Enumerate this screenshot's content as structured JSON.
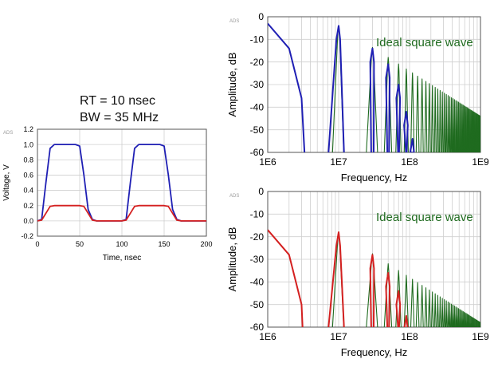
{
  "annotation": {
    "rt": "RT = 10 nsec",
    "bw": "BW = 35 MHz"
  },
  "colors": {
    "blue": "#1f1fb4",
    "red": "#d42020",
    "green": "#1f6b1f",
    "grid": "#cfcfcf",
    "axis": "#000000"
  },
  "chart_data": [
    {
      "id": "time",
      "type": "line",
      "title": "",
      "xlabel": "Time, nsec",
      "ylabel": "Voltage, V",
      "xlim": [
        0,
        200
      ],
      "ylim": [
        -0.2,
        1.2
      ],
      "xticks": [
        0,
        50,
        100,
        150,
        200
      ],
      "xtick_labels": [
        "0",
        "50",
        "100",
        "150",
        "200"
      ],
      "yticks": [
        -0.2,
        0.0,
        0.2,
        0.4,
        0.6,
        0.8,
        1.0,
        1.2
      ],
      "ytick_labels": [
        "-0.2",
        "0.0",
        "0.2",
        "0.4",
        "0.6",
        "0.8",
        "1.0",
        "1.2"
      ],
      "grid": true,
      "corner_mark": "ADS",
      "series": [
        {
          "color": "blue",
          "x": [
            0,
            5,
            10,
            15,
            20,
            25,
            45,
            50,
            55,
            60,
            65,
            70,
            100,
            105,
            110,
            115,
            120,
            125,
            145,
            150,
            155,
            160,
            165,
            170,
            200
          ],
          "y": [
            0,
            0.02,
            0.5,
            0.95,
            1.0,
            1.0,
            1.0,
            0.98,
            0.6,
            0.15,
            0.02,
            0,
            0,
            0.02,
            0.5,
            0.95,
            1.0,
            1.0,
            1.0,
            0.98,
            0.6,
            0.15,
            0.02,
            0,
            0
          ]
        },
        {
          "color": "red",
          "x": [
            0,
            5,
            10,
            15,
            20,
            50,
            55,
            60,
            65,
            70,
            100,
            105,
            110,
            115,
            120,
            150,
            155,
            160,
            165,
            170,
            200
          ],
          "y": [
            0,
            0.01,
            0.1,
            0.19,
            0.2,
            0.2,
            0.19,
            0.1,
            0.01,
            0,
            0,
            0.01,
            0.1,
            0.19,
            0.2,
            0.2,
            0.19,
            0.1,
            0.01,
            0,
            0
          ]
        }
      ]
    },
    {
      "id": "spec_top",
      "type": "line",
      "title": "",
      "xlabel": "Frequency, Hz",
      "ylabel": "Amplitude, dB",
      "xscale": "log",
      "xlim": [
        1000000,
        1000000000
      ],
      "ylim": [
        -60,
        0
      ],
      "xticks": [
        1000000,
        10000000,
        100000000,
        1000000000
      ],
      "xtick_labels": [
        "1E6",
        "1E7",
        "1E8",
        "1E9"
      ],
      "yticks": [
        0,
        -10,
        -20,
        -30,
        -40,
        -50,
        -60
      ],
      "ytick_labels": [
        "0",
        "-10",
        "-20",
        "-30",
        "-40",
        "-50",
        "-60"
      ],
      "grid": true,
      "corner_mark": "ADS",
      "annotation": "Ideal square wave",
      "fundamental_hz": 10000000,
      "ideal": {
        "color": "green",
        "fund_db": -4,
        "harmonic_max": 99
      },
      "filtered": {
        "color": "blue",
        "lead": [
          [
            1000000,
            -3
          ],
          [
            2000000,
            -14
          ],
          [
            3000000,
            -36
          ],
          [
            3300000,
            -60
          ]
        ],
        "lobes": [
          {
            "n": 1,
            "peak_db": -4,
            "left_hz": 7200000,
            "right_hz": 11900000
          },
          {
            "n": 3,
            "peak_db": -14,
            "left_hz": 28800000,
            "right_hz": 31200000
          },
          {
            "n": 5,
            "peak_db": -21,
            "left_hz": 48600000,
            "right_hz": 51400000
          },
          {
            "n": 7,
            "peak_db": -30,
            "left_hz": 68800000,
            "right_hz": 71200000
          },
          {
            "n": 9,
            "peak_db": -42,
            "left_hz": 89000000,
            "right_hz": 91000000
          },
          {
            "n": 11,
            "peak_db": -54,
            "left_hz": 109500000,
            "right_hz": 110500000
          }
        ]
      }
    },
    {
      "id": "spec_bottom",
      "type": "line",
      "title": "",
      "xlabel": "Frequency, Hz",
      "ylabel": "Amplitude, dB",
      "xscale": "log",
      "xlim": [
        1000000,
        1000000000
      ],
      "ylim": [
        -60,
        0
      ],
      "xticks": [
        1000000,
        10000000,
        100000000,
        1000000000
      ],
      "xtick_labels": [
        "1E6",
        "1E7",
        "1E8",
        "1E9"
      ],
      "yticks": [
        0,
        -10,
        -20,
        -30,
        -40,
        -50,
        -60
      ],
      "ytick_labels": [
        "0",
        "-10",
        "-20",
        "-30",
        "-40",
        "-50",
        "-60"
      ],
      "grid": true,
      "corner_mark": "ADS",
      "annotation": "Ideal square wave",
      "fundamental_hz": 10000000,
      "ideal": {
        "color": "green",
        "fund_db": -18,
        "harmonic_max": 99
      },
      "filtered": {
        "color": "red",
        "lead": [
          [
            1000000,
            -17
          ],
          [
            2000000,
            -28
          ],
          [
            3000000,
            -50
          ],
          [
            3100000,
            -60
          ]
        ],
        "lobes": [
          {
            "n": 1,
            "peak_db": -18,
            "left_hz": 7200000,
            "right_hz": 11900000
          },
          {
            "n": 3,
            "peak_db": -28,
            "left_hz": 28800000,
            "right_hz": 31200000
          },
          {
            "n": 5,
            "peak_db": -36,
            "left_hz": 48600000,
            "right_hz": 51400000
          },
          {
            "n": 7,
            "peak_db": -44,
            "left_hz": 68800000,
            "right_hz": 71200000
          },
          {
            "n": 9,
            "peak_db": -55,
            "left_hz": 89500000,
            "right_hz": 90500000
          }
        ]
      }
    }
  ]
}
